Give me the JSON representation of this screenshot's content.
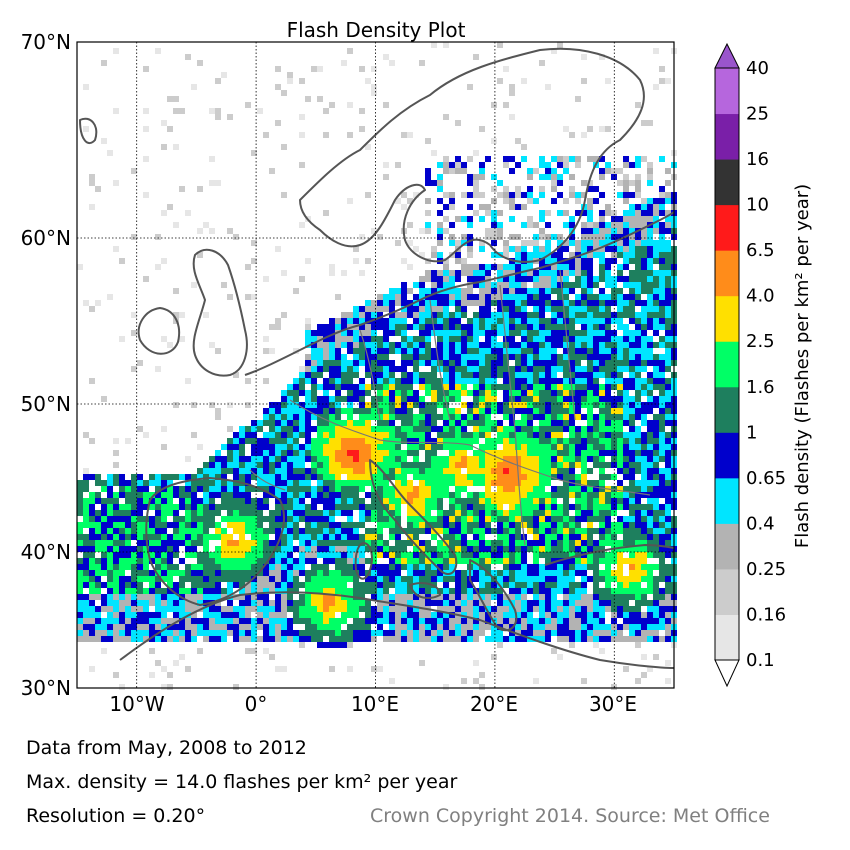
{
  "title": "Flash Density Plot",
  "latitude_ticks": [
    "70°N",
    "60°N",
    "50°N",
    "40°N",
    "30°N"
  ],
  "longitude_ticks": [
    "10°W",
    "0°",
    "10°E",
    "20°E",
    "30°E"
  ],
  "colorbar": {
    "label": "Flash density (Flashes per km² per year)",
    "levels": [
      "0.1",
      "0.16",
      "0.25",
      "0.4",
      "0.65",
      "1",
      "1.6",
      "2.5",
      "4.0",
      "6.5",
      "10",
      "16",
      "25",
      "40"
    ],
    "colors": [
      "#e6e6e6",
      "#cccccc",
      "#b3b3b3",
      "#00e5ff",
      "#0000cc",
      "#1e7f5e",
      "#00ff66",
      "#ffe000",
      "#ff8c1a",
      "#ff1a1a",
      "#333333",
      "#7a1fa8",
      "#b666dd"
    ],
    "over_color": "#9a55cc"
  },
  "footer": {
    "period": "Data from May, 2008 to 2012",
    "max_density": "Max. density = 14.0 flashes per km² per year",
    "resolution": "Resolution = 0.20°",
    "credit": "Crown Copyright 2014. Source: Met Office"
  },
  "map_extent": {
    "lon": [
      -15,
      35
    ],
    "lat": [
      30,
      70
    ]
  },
  "hotspots": [
    {
      "lon": 8,
      "lat": 47,
      "level": 9
    },
    {
      "lon": 21,
      "lat": 45.5,
      "level": 9
    },
    {
      "lon": 17,
      "lat": 46,
      "level": 8
    },
    {
      "lon": -2,
      "lat": 41,
      "level": 8
    },
    {
      "lon": 13,
      "lat": 44,
      "level": 8
    },
    {
      "lon": 6,
      "lat": 36.5,
      "level": 8
    },
    {
      "lon": 31,
      "lat": 39,
      "level": 8
    }
  ]
}
